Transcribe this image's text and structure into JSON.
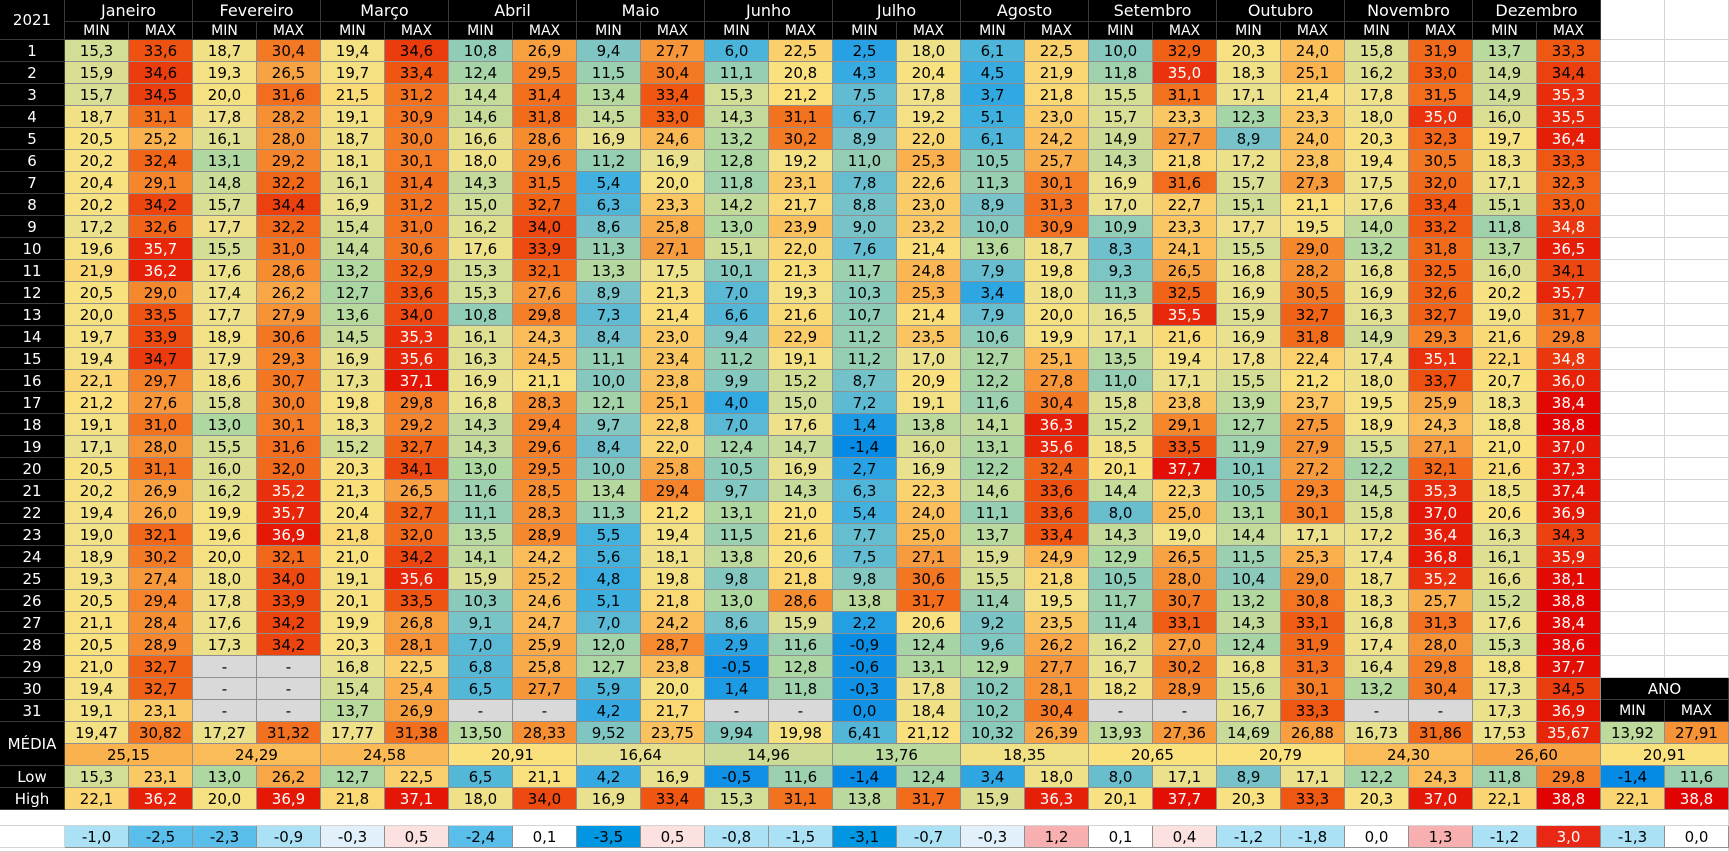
{
  "year": "2021",
  "months": [
    "Janeiro",
    "Fevereiro",
    "Março",
    "Abril",
    "Maio",
    "Junho",
    "Julho",
    "Agosto",
    "Setembro",
    "Outubro",
    "Novembro",
    "Dezembro"
  ],
  "min_label": "MIN",
  "max_label": "MAX",
  "na_symbol": "-",
  "days": [
    "1",
    "2",
    "3",
    "4",
    "5",
    "6",
    "7",
    "8",
    "9",
    "10",
    "11",
    "12",
    "13",
    "14",
    "15",
    "16",
    "17",
    "18",
    "19",
    "20",
    "21",
    "22",
    "23",
    "24",
    "25",
    "26",
    "27",
    "28",
    "29",
    "30",
    "31"
  ],
  "rows": [
    [
      "15,3",
      "33,6",
      "18,7",
      "30,4",
      "19,4",
      "34,6",
      "10,8",
      "26,9",
      "9,4",
      "27,7",
      "6,0",
      "22,5",
      "2,5",
      "18,0",
      "6,1",
      "22,5",
      "10,0",
      "32,9",
      "20,3",
      "24,0",
      "15,8",
      "31,9",
      "13,7",
      "33,3"
    ],
    [
      "15,9",
      "34,6",
      "19,3",
      "26,5",
      "19,7",
      "33,4",
      "12,4",
      "29,5",
      "11,5",
      "30,4",
      "11,1",
      "20,8",
      "4,3",
      "20,4",
      "4,5",
      "21,9",
      "11,8",
      "35,0",
      "18,3",
      "25,1",
      "16,2",
      "33,0",
      "14,9",
      "34,4"
    ],
    [
      "15,7",
      "34,5",
      "20,0",
      "31,6",
      "21,5",
      "31,2",
      "14,4",
      "31,4",
      "13,4",
      "33,4",
      "15,3",
      "21,2",
      "7,5",
      "17,8",
      "3,7",
      "21,8",
      "15,5",
      "31,1",
      "17,1",
      "21,4",
      "17,8",
      "31,5",
      "14,9",
      "35,3"
    ],
    [
      "18,7",
      "31,1",
      "17,8",
      "28,2",
      "19,1",
      "30,9",
      "14,6",
      "31,8",
      "14,5",
      "33,0",
      "14,3",
      "31,1",
      "6,7",
      "19,2",
      "5,1",
      "23,0",
      "15,7",
      "23,3",
      "12,3",
      "23,3",
      "18,0",
      "35,0",
      "16,0",
      "35,5"
    ],
    [
      "20,5",
      "25,2",
      "16,1",
      "28,0",
      "18,7",
      "30,0",
      "16,6",
      "28,6",
      "16,9",
      "24,6",
      "13,2",
      "30,2",
      "8,9",
      "22,0",
      "6,1",
      "24,2",
      "14,9",
      "27,7",
      "8,9",
      "24,0",
      "20,3",
      "32,3",
      "19,7",
      "36,4"
    ],
    [
      "20,2",
      "32,4",
      "13,1",
      "29,2",
      "18,1",
      "30,1",
      "18,0",
      "29,6",
      "11,2",
      "16,9",
      "12,8",
      "19,2",
      "11,0",
      "25,3",
      "10,5",
      "25,7",
      "14,3",
      "21,8",
      "17,2",
      "23,8",
      "19,4",
      "30,5",
      "18,3",
      "33,3"
    ],
    [
      "20,4",
      "29,1",
      "14,8",
      "32,2",
      "16,1",
      "31,4",
      "14,3",
      "31,5",
      "5,4",
      "20,0",
      "11,8",
      "23,1",
      "7,8",
      "22,6",
      "11,3",
      "30,1",
      "16,9",
      "31,6",
      "15,7",
      "27,3",
      "17,5",
      "32,0",
      "17,1",
      "32,3"
    ],
    [
      "20,2",
      "34,2",
      "15,7",
      "34,4",
      "16,9",
      "31,2",
      "15,0",
      "32,7",
      "6,3",
      "23,3",
      "14,2",
      "21,7",
      "8,8",
      "23,0",
      "8,9",
      "31,3",
      "17,0",
      "22,7",
      "15,1",
      "21,1",
      "17,6",
      "33,4",
      "15,1",
      "33,0"
    ],
    [
      "17,2",
      "32,6",
      "17,7",
      "32,2",
      "15,4",
      "31,0",
      "16,2",
      "34,0",
      "8,6",
      "25,8",
      "13,0",
      "23,9",
      "9,0",
      "23,2",
      "10,0",
      "30,9",
      "10,9",
      "23,3",
      "17,7",
      "19,5",
      "14,0",
      "33,2",
      "11,8",
      "34,8"
    ],
    [
      "19,6",
      "35,7",
      "15,5",
      "31,0",
      "14,4",
      "30,6",
      "17,6",
      "33,9",
      "11,3",
      "27,1",
      "15,1",
      "22,0",
      "7,6",
      "21,4",
      "13,6",
      "18,7",
      "8,3",
      "24,1",
      "15,5",
      "29,0",
      "13,2",
      "31,8",
      "13,7",
      "36,5"
    ],
    [
      "21,9",
      "36,2",
      "17,6",
      "28,6",
      "13,2",
      "32,9",
      "15,3",
      "32,1",
      "13,3",
      "17,5",
      "10,1",
      "21,3",
      "11,7",
      "24,8",
      "7,9",
      "19,8",
      "9,3",
      "26,5",
      "16,8",
      "28,2",
      "16,8",
      "32,5",
      "16,0",
      "34,1"
    ],
    [
      "20,5",
      "29,0",
      "17,4",
      "26,2",
      "12,7",
      "33,6",
      "15,3",
      "27,6",
      "8,9",
      "21,3",
      "7,0",
      "19,3",
      "10,3",
      "25,3",
      "3,4",
      "18,0",
      "11,3",
      "32,5",
      "16,9",
      "30,5",
      "16,9",
      "32,6",
      "20,2",
      "35,7"
    ],
    [
      "20,0",
      "33,5",
      "17,7",
      "27,9",
      "13,6",
      "34,0",
      "10,8",
      "29,8",
      "7,3",
      "21,4",
      "6,6",
      "21,6",
      "10,7",
      "21,4",
      "7,9",
      "20,0",
      "16,5",
      "35,5",
      "15,9",
      "32,7",
      "16,3",
      "32,7",
      "19,0",
      "31,7"
    ],
    [
      "19,7",
      "33,9",
      "18,9",
      "30,6",
      "14,5",
      "35,3",
      "16,1",
      "24,3",
      "8,4",
      "23,0",
      "9,4",
      "22,9",
      "11,2",
      "23,5",
      "10,6",
      "19,9",
      "17,1",
      "21,6",
      "16,9",
      "31,8",
      "14,9",
      "29,3",
      "21,6",
      "29,8"
    ],
    [
      "19,4",
      "34,7",
      "17,9",
      "29,3",
      "16,9",
      "35,6",
      "16,3",
      "24,5",
      "11,1",
      "23,4",
      "11,2",
      "19,1",
      "11,2",
      "17,0",
      "12,7",
      "25,1",
      "13,5",
      "19,4",
      "17,8",
      "22,4",
      "17,4",
      "35,1",
      "22,1",
      "34,8"
    ],
    [
      "22,1",
      "29,7",
      "18,6",
      "30,7",
      "17,3",
      "37,1",
      "16,9",
      "21,1",
      "10,0",
      "23,8",
      "9,9",
      "15,2",
      "8,7",
      "20,9",
      "12,2",
      "27,8",
      "11,0",
      "17,1",
      "15,5",
      "21,2",
      "18,0",
      "33,7",
      "20,7",
      "36,0"
    ],
    [
      "21,2",
      "27,6",
      "15,8",
      "30,0",
      "19,8",
      "29,8",
      "16,8",
      "28,3",
      "12,1",
      "25,1",
      "4,0",
      "15,0",
      "7,2",
      "19,1",
      "11,6",
      "30,4",
      "15,8",
      "23,8",
      "13,9",
      "23,7",
      "19,5",
      "25,9",
      "18,3",
      "38,4"
    ],
    [
      "19,1",
      "31,0",
      "13,0",
      "30,1",
      "18,3",
      "29,2",
      "14,3",
      "29,4",
      "9,7",
      "22,8",
      "7,0",
      "17,6",
      "1,4",
      "13,8",
      "14,1",
      "36,3",
      "15,2",
      "29,1",
      "12,7",
      "27,5",
      "18,9",
      "24,3",
      "18,8",
      "38,8"
    ],
    [
      "17,1",
      "28,0",
      "15,5",
      "31,6",
      "15,2",
      "32,7",
      "14,3",
      "29,6",
      "8,4",
      "22,0",
      "12,4",
      "14,7",
      "-1,4",
      "16,0",
      "13,1",
      "35,6",
      "18,5",
      "33,5",
      "11,9",
      "27,9",
      "15,5",
      "27,1",
      "21,0",
      "37,0"
    ],
    [
      "20,5",
      "31,1",
      "16,0",
      "32,0",
      "20,3",
      "34,1",
      "13,0",
      "29,5",
      "10,0",
      "25,8",
      "10,5",
      "16,9",
      "2,7",
      "16,9",
      "12,2",
      "32,4",
      "20,1",
      "37,7",
      "10,1",
      "27,2",
      "12,2",
      "32,1",
      "21,6",
      "37,3"
    ],
    [
      "20,2",
      "26,9",
      "16,2",
      "35,2",
      "21,3",
      "26,5",
      "11,6",
      "28,5",
      "13,4",
      "29,4",
      "9,7",
      "14,3",
      "6,3",
      "22,3",
      "14,6",
      "33,6",
      "14,4",
      "22,3",
      "10,5",
      "29,3",
      "14,5",
      "35,3",
      "18,5",
      "37,4"
    ],
    [
      "19,4",
      "26,0",
      "19,9",
      "35,7",
      "20,4",
      "32,7",
      "11,1",
      "28,3",
      "11,3",
      "21,2",
      "13,1",
      "21,0",
      "5,4",
      "24,0",
      "11,1",
      "33,6",
      "8,0",
      "25,0",
      "13,1",
      "30,1",
      "15,8",
      "37,0",
      "20,6",
      "36,9"
    ],
    [
      "19,0",
      "32,1",
      "19,6",
      "36,9",
      "21,8",
      "32,0",
      "13,5",
      "28,9",
      "5,5",
      "19,4",
      "11,5",
      "21,6",
      "7,7",
      "25,0",
      "13,7",
      "33,4",
      "14,3",
      "19,0",
      "14,4",
      "17,1",
      "17,2",
      "36,4",
      "16,3",
      "34,3"
    ],
    [
      "18,9",
      "30,2",
      "20,0",
      "32,1",
      "21,0",
      "34,2",
      "14,1",
      "24,2",
      "5,6",
      "18,1",
      "13,8",
      "20,6",
      "7,5",
      "27,1",
      "15,9",
      "24,9",
      "12,9",
      "26,5",
      "11,5",
      "25,3",
      "17,4",
      "36,8",
      "16,1",
      "35,9"
    ],
    [
      "19,3",
      "27,4",
      "18,0",
      "34,0",
      "19,1",
      "35,6",
      "15,9",
      "25,2",
      "4,8",
      "19,8",
      "9,8",
      "21,8",
      "9,8",
      "30,6",
      "15,5",
      "21,8",
      "10,5",
      "28,0",
      "10,4",
      "29,0",
      "18,7",
      "35,2",
      "16,6",
      "38,1"
    ],
    [
      "20,5",
      "29,4",
      "17,8",
      "33,9",
      "20,1",
      "33,5",
      "10,3",
      "24,6",
      "5,1",
      "21,8",
      "13,0",
      "28,6",
      "13,8",
      "31,7",
      "11,4",
      "19,5",
      "11,7",
      "30,7",
      "13,2",
      "30,8",
      "18,3",
      "25,7",
      "15,2",
      "38,8"
    ],
    [
      "21,1",
      "28,4",
      "17,6",
      "34,2",
      "19,9",
      "26,8",
      "9,1",
      "24,7",
      "7,0",
      "24,2",
      "8,6",
      "15,9",
      "2,2",
      "20,6",
      "9,2",
      "23,5",
      "11,4",
      "33,1",
      "14,3",
      "33,1",
      "16,8",
      "31,3",
      "17,6",
      "38,4"
    ],
    [
      "20,5",
      "28,9",
      "17,3",
      "34,2",
      "20,3",
      "28,1",
      "7,0",
      "25,9",
      "12,0",
      "28,7",
      "2,9",
      "11,6",
      "-0,9",
      "12,4",
      "9,6",
      "26,2",
      "16,2",
      "27,0",
      "12,4",
      "31,9",
      "17,4",
      "28,0",
      "15,3",
      "38,6"
    ],
    [
      "21,0",
      "32,7",
      "-",
      "-",
      "16,8",
      "22,5",
      "6,8",
      "25,8",
      "12,7",
      "23,8",
      "-0,5",
      "12,8",
      "-0,6",
      "13,1",
      "12,9",
      "27,7",
      "16,7",
      "30,2",
      "16,8",
      "31,3",
      "16,4",
      "29,8",
      "18,8",
      "37,7"
    ],
    [
      "19,4",
      "32,7",
      "-",
      "-",
      "15,4",
      "25,4",
      "6,5",
      "27,7",
      "5,9",
      "20,0",
      "1,4",
      "11,8",
      "-0,3",
      "17,8",
      "10,2",
      "28,1",
      "18,2",
      "28,9",
      "15,6",
      "30,1",
      "13,2",
      "30,4",
      "17,3",
      "34,5"
    ],
    [
      "19,1",
      "23,1",
      "-",
      "-",
      "13,7",
      "26,9",
      "-",
      "-",
      "4,2",
      "21,7",
      "-",
      "-",
      "0,0",
      "18,4",
      "10,2",
      "30,4",
      "-",
      "-",
      "16,7",
      "33,3",
      "-",
      "-",
      "17,3",
      "36,9"
    ]
  ],
  "summary": {
    "media_label": "MÉDIA",
    "low_label": "Low",
    "high_label": "High",
    "media": [
      "19,47",
      "30,82",
      "17,27",
      "31,32",
      "17,77",
      "31,38",
      "13,50",
      "28,33",
      "9,52",
      "23,75",
      "9,94",
      "19,98",
      "6,41",
      "21,12",
      "10,32",
      "26,39",
      "13,93",
      "27,36",
      "14,69",
      "26,88",
      "16,73",
      "31,86",
      "17,53",
      "35,67"
    ],
    "monthly_avg": [
      "25,15",
      "24,29",
      "24,58",
      "20,91",
      "16,64",
      "14,96",
      "13,76",
      "18,35",
      "20,65",
      "20,79",
      "24,30",
      "26,60"
    ],
    "low": [
      "15,3",
      "23,1",
      "13,0",
      "26,2",
      "12,7",
      "22,5",
      "6,5",
      "21,1",
      "4,2",
      "16,9",
      "-0,5",
      "11,6",
      "-1,4",
      "12,4",
      "3,4",
      "18,0",
      "8,0",
      "17,1",
      "8,9",
      "17,1",
      "12,2",
      "24,3",
      "11,8",
      "29,8"
    ],
    "high": [
      "22,1",
      "36,2",
      "20,0",
      "36,9",
      "21,8",
      "37,1",
      "18,0",
      "34,0",
      "16,9",
      "33,4",
      "15,3",
      "31,1",
      "13,8",
      "31,7",
      "15,9",
      "36,3",
      "20,1",
      "37,7",
      "20,3",
      "33,3",
      "20,3",
      "37,0",
      "22,1",
      "38,8"
    ],
    "diff": [
      "-1,0",
      "-2,5",
      "-2,3",
      "-0,9",
      "-0,3",
      "0,5",
      "-2,4",
      "0,1",
      "-3,5",
      "0,5",
      "-0,8",
      "-1,5",
      "-3,1",
      "-0,7",
      "-0,3",
      "1,2",
      "0,1",
      "0,4",
      "-1,2",
      "-1,8",
      "0,0",
      "1,3",
      "-1,2",
      "3,0"
    ]
  },
  "ano": {
    "label": "ANO",
    "media": [
      "13,92",
      "27,91"
    ],
    "avg": "20,91",
    "low": [
      "-1,4",
      "11,6"
    ],
    "high": [
      "22,1",
      "38,8"
    ],
    "diff": [
      "-1,3",
      "0,0"
    ]
  }
}
